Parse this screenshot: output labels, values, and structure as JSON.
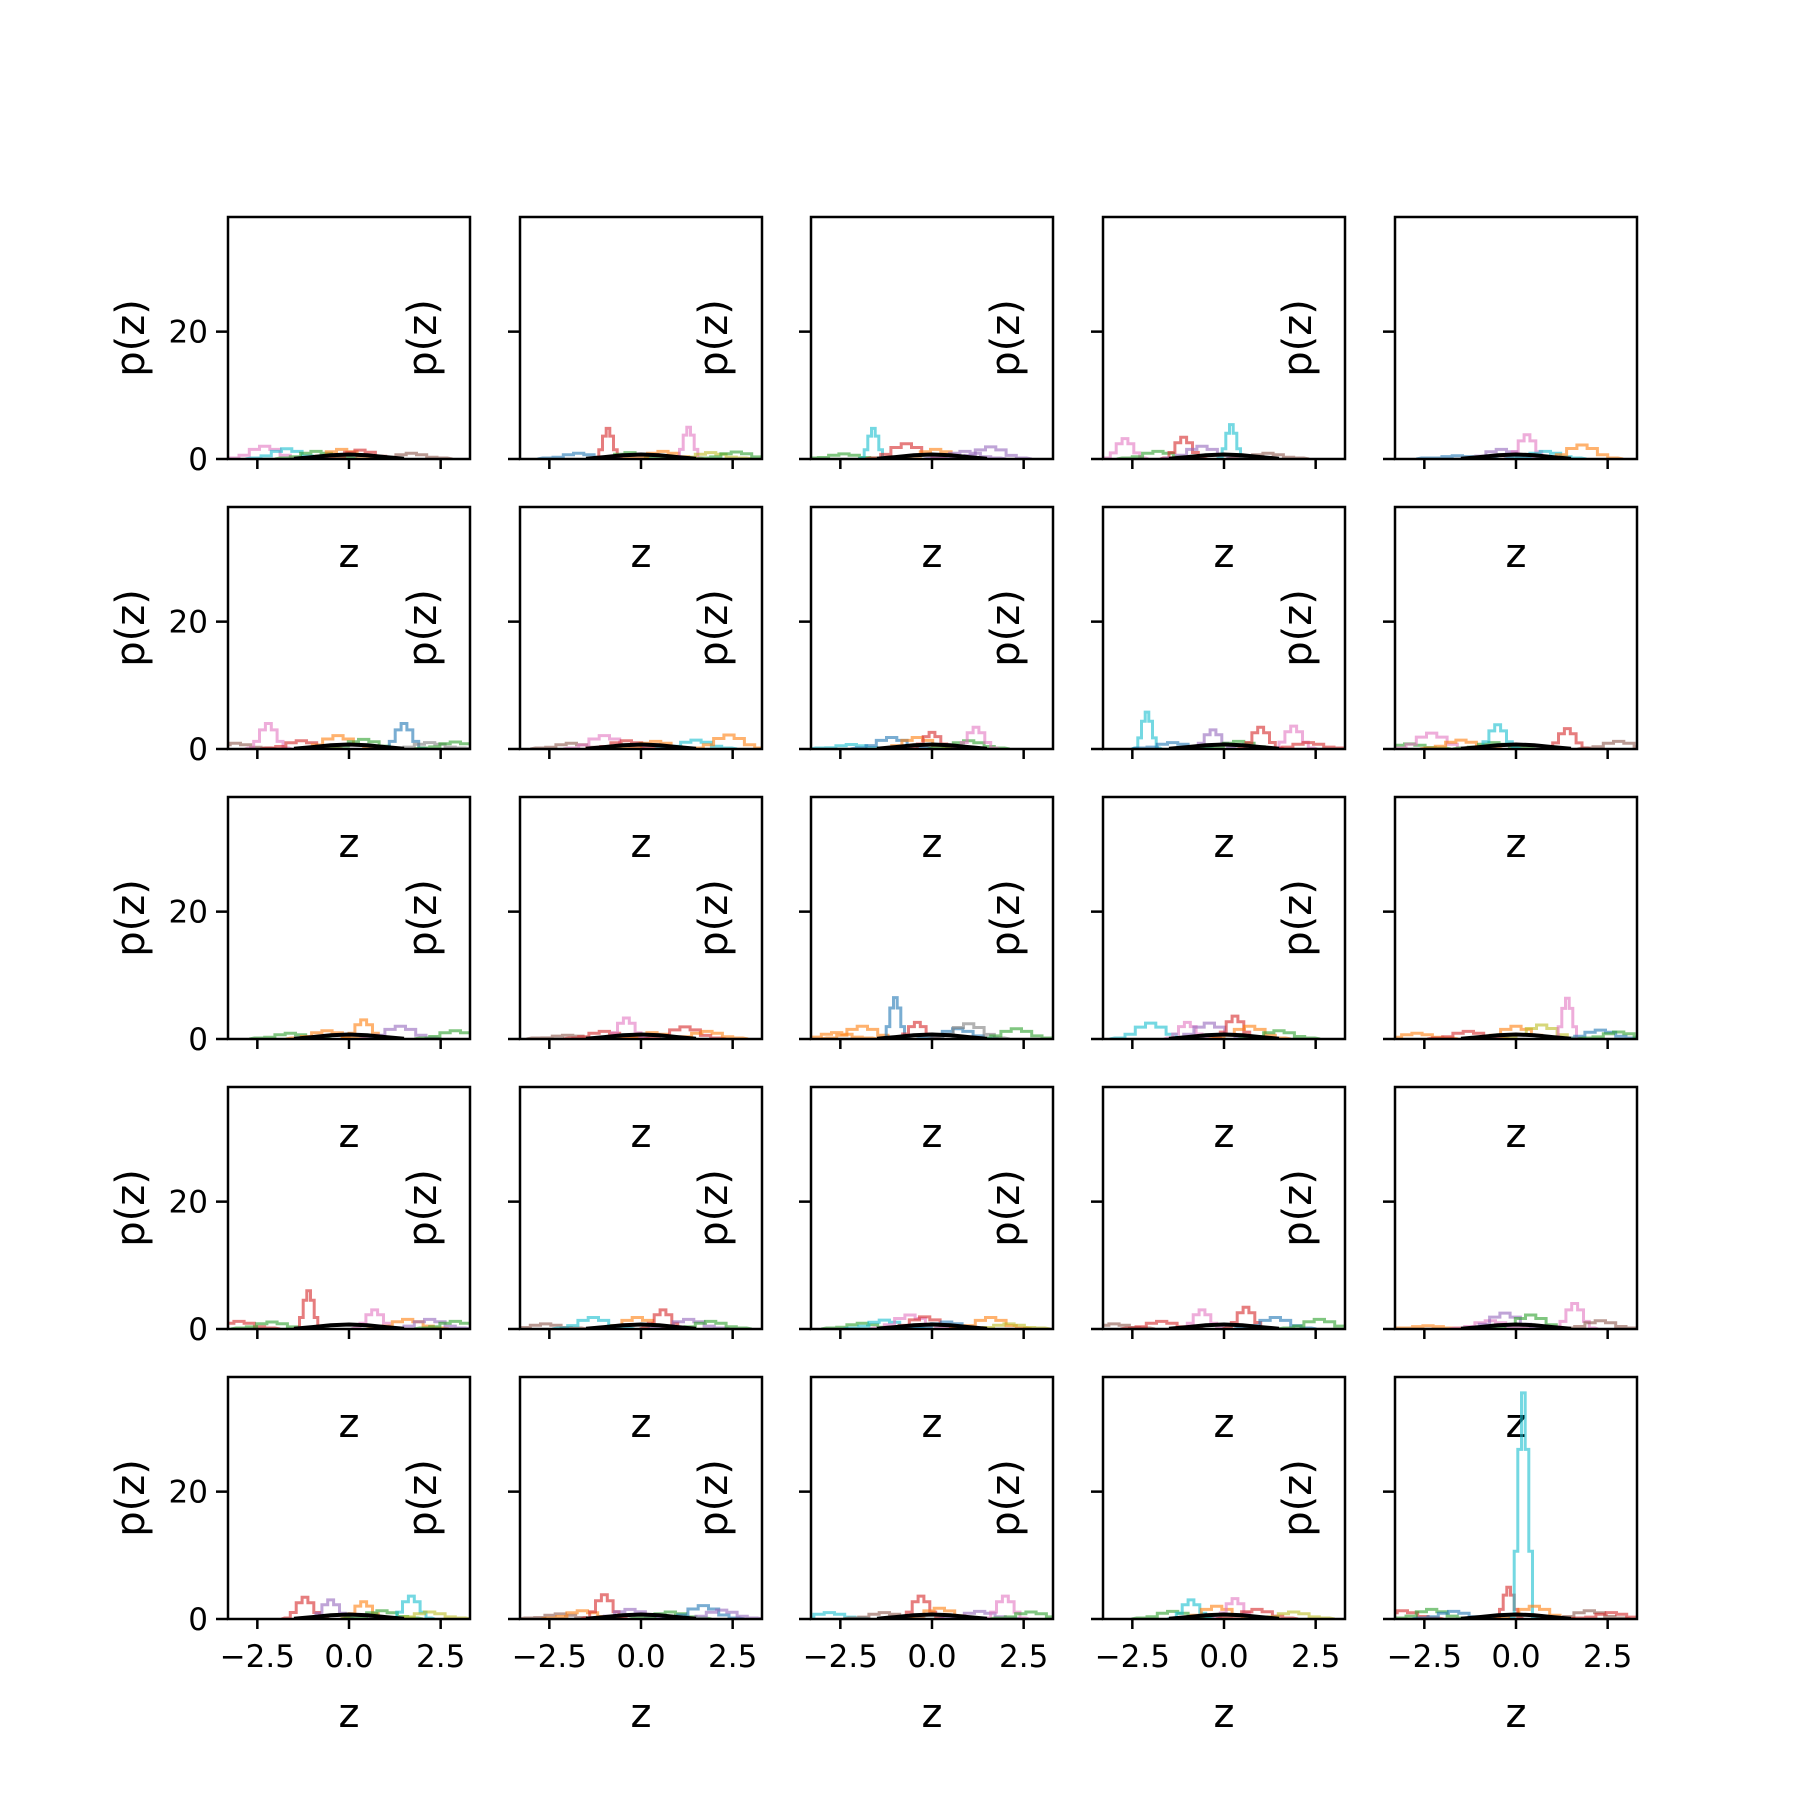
{
  "chart_data": {
    "type": "line",
    "layout": {
      "rows": 5,
      "cols": 5,
      "sharex": true,
      "sharey": true
    },
    "xlabel": "z",
    "ylabel": "p(z)",
    "xlim": [
      -3.3,
      3.3
    ],
    "ylim": [
      0,
      38
    ],
    "xticks": [
      -2.5,
      0.0,
      2.5
    ],
    "xtick_labels": [
      "−2.5",
      "0.0",
      "2.5"
    ],
    "yticks": [
      0,
      20
    ],
    "ytick_labels": [
      "0",
      "20"
    ],
    "grid": false,
    "legend": "none",
    "series_colors": [
      "#1f77b4",
      "#ff7f0e",
      "#2ca02c",
      "#d62728",
      "#9467bd",
      "#8c564b",
      "#e377c2",
      "#7f7f7f",
      "#bcbd22",
      "#17becf"
    ],
    "overall_curve_color": "#000000",
    "overall_curve": {
      "x": [
        -1.5,
        -1.0,
        -0.5,
        0.0,
        0.5,
        1.0,
        1.5
      ],
      "y": [
        0.05,
        0.3,
        0.6,
        0.7,
        0.6,
        0.3,
        0.05
      ]
    },
    "panels": [
      {
        "peaks": [
          {
            "x": -2.3,
            "h": 2.0,
            "c": 6
          },
          {
            "x": -1.7,
            "h": 1.6,
            "c": 9
          },
          {
            "x": -0.9,
            "h": 1.2,
            "c": 2
          },
          {
            "x": -0.2,
            "h": 1.5,
            "c": 1
          },
          {
            "x": 0.3,
            "h": 1.4,
            "c": 3
          },
          {
            "x": 1.7,
            "h": 0.9,
            "c": 5
          }
        ]
      },
      {
        "peaks": [
          {
            "x": -1.7,
            "h": 0.9,
            "c": 0
          },
          {
            "x": -0.9,
            "h": 4.8,
            "c": 3
          },
          {
            "x": -0.3,
            "h": 1.0,
            "c": 2
          },
          {
            "x": 0.6,
            "h": 1.2,
            "c": 1
          },
          {
            "x": 1.3,
            "h": 5.0,
            "c": 6
          },
          {
            "x": 1.9,
            "h": 1.0,
            "c": 8
          },
          {
            "x": 2.6,
            "h": 1.1,
            "c": 2
          }
        ]
      },
      {
        "peaks": [
          {
            "x": -2.4,
            "h": 0.8,
            "c": 2
          },
          {
            "x": -1.6,
            "h": 4.8,
            "c": 9
          },
          {
            "x": -0.7,
            "h": 2.4,
            "c": 3
          },
          {
            "x": 0.1,
            "h": 1.5,
            "c": 1
          },
          {
            "x": 0.9,
            "h": 1.2,
            "c": 4
          },
          {
            "x": 1.6,
            "h": 1.9,
            "c": 4
          }
        ]
      },
      {
        "peaks": [
          {
            "x": -2.7,
            "h": 3.2,
            "c": 6
          },
          {
            "x": -1.8,
            "h": 1.2,
            "c": 2
          },
          {
            "x": -1.1,
            "h": 3.4,
            "c": 3
          },
          {
            "x": -0.6,
            "h": 2.0,
            "c": 4
          },
          {
            "x": 0.2,
            "h": 5.4,
            "c": 9
          },
          {
            "x": 1.2,
            "h": 0.9,
            "c": 5
          }
        ]
      },
      {
        "peaks": [
          {
            "x": -1.6,
            "h": 0.5,
            "c": 0
          },
          {
            "x": -0.4,
            "h": 1.5,
            "c": 4
          },
          {
            "x": 0.3,
            "h": 3.8,
            "c": 6
          },
          {
            "x": 0.8,
            "h": 1.2,
            "c": 9
          },
          {
            "x": 1.8,
            "h": 2.2,
            "c": 1
          }
        ]
      },
      {
        "peaks": [
          {
            "x": -3.1,
            "h": 0.9,
            "c": 5
          },
          {
            "x": -2.2,
            "h": 4.0,
            "c": 6
          },
          {
            "x": -1.3,
            "h": 1.3,
            "c": 3
          },
          {
            "x": -0.3,
            "h": 2.1,
            "c": 1
          },
          {
            "x": 0.4,
            "h": 1.5,
            "c": 2
          },
          {
            "x": 1.5,
            "h": 4.0,
            "c": 0
          },
          {
            "x": 2.2,
            "h": 1.0,
            "c": 7
          },
          {
            "x": 2.9,
            "h": 1.1,
            "c": 2
          }
        ]
      },
      {
        "peaks": [
          {
            "x": -1.9,
            "h": 0.9,
            "c": 5
          },
          {
            "x": -1.0,
            "h": 2.1,
            "c": 6
          },
          {
            "x": -0.4,
            "h": 1.3,
            "c": 3
          },
          {
            "x": 0.4,
            "h": 1.2,
            "c": 1
          },
          {
            "x": 1.5,
            "h": 1.4,
            "c": 9
          },
          {
            "x": 2.4,
            "h": 2.2,
            "c": 1
          }
        ]
      },
      {
        "peaks": [
          {
            "x": -2.2,
            "h": 0.7,
            "c": 9
          },
          {
            "x": -1.1,
            "h": 1.8,
            "c": 0
          },
          {
            "x": -0.4,
            "h": 1.8,
            "c": 1
          },
          {
            "x": 0.0,
            "h": 2.6,
            "c": 3
          },
          {
            "x": 1.0,
            "h": 1.3,
            "c": 2
          },
          {
            "x": 1.2,
            "h": 3.4,
            "c": 6
          }
        ]
      },
      {
        "peaks": [
          {
            "x": -2.1,
            "h": 5.8,
            "c": 9
          },
          {
            "x": -1.4,
            "h": 1.0,
            "c": 0
          },
          {
            "x": -0.3,
            "h": 3.0,
            "c": 4
          },
          {
            "x": 0.4,
            "h": 1.2,
            "c": 2
          },
          {
            "x": 1.0,
            "h": 3.4,
            "c": 3
          },
          {
            "x": 1.9,
            "h": 3.6,
            "c": 6
          },
          {
            "x": 2.3,
            "h": 1.0,
            "c": 3
          }
        ]
      },
      {
        "peaks": [
          {
            "x": -2.9,
            "h": 0.8,
            "c": 2
          },
          {
            "x": -2.3,
            "h": 2.5,
            "c": 6
          },
          {
            "x": -1.5,
            "h": 1.4,
            "c": 1
          },
          {
            "x": -0.6,
            "h": 1.0,
            "c": 2
          },
          {
            "x": -0.5,
            "h": 3.8,
            "c": 9
          },
          {
            "x": 1.4,
            "h": 3.2,
            "c": 3
          },
          {
            "x": 2.8,
            "h": 1.2,
            "c": 5
          }
        ]
      },
      {
        "peaks": [
          {
            "x": -1.6,
            "h": 0.9,
            "c": 2
          },
          {
            "x": -0.6,
            "h": 1.3,
            "c": 1
          },
          {
            "x": 0.4,
            "h": 3.0,
            "c": 1
          },
          {
            "x": 1.4,
            "h": 2.0,
            "c": 4
          },
          {
            "x": 2.9,
            "h": 1.3,
            "c": 2
          }
        ]
      },
      {
        "peaks": [
          {
            "x": -2.0,
            "h": 0.6,
            "c": 5
          },
          {
            "x": -1.0,
            "h": 1.2,
            "c": 3
          },
          {
            "x": -0.4,
            "h": 3.3,
            "c": 6
          },
          {
            "x": 0.3,
            "h": 1.0,
            "c": 1
          },
          {
            "x": 1.2,
            "h": 1.9,
            "c": 3
          },
          {
            "x": 1.8,
            "h": 1.2,
            "c": 1
          }
        ]
      },
      {
        "peaks": [
          {
            "x": -2.6,
            "h": 1.0,
            "c": 1
          },
          {
            "x": -1.9,
            "h": 2.0,
            "c": 1
          },
          {
            "x": -1.0,
            "h": 6.5,
            "c": 0
          },
          {
            "x": -0.4,
            "h": 2.6,
            "c": 3
          },
          {
            "x": 0.7,
            "h": 1.6,
            "c": 0
          },
          {
            "x": 1.0,
            "h": 2.4,
            "c": 7
          },
          {
            "x": 2.3,
            "h": 1.6,
            "c": 2
          }
        ]
      },
      {
        "peaks": [
          {
            "x": -2.0,
            "h": 2.5,
            "c": 9
          },
          {
            "x": -1.0,
            "h": 2.6,
            "c": 6
          },
          {
            "x": -0.4,
            "h": 2.5,
            "c": 4
          },
          {
            "x": 0.3,
            "h": 3.6,
            "c": 3
          },
          {
            "x": 0.7,
            "h": 2.0,
            "c": 1
          },
          {
            "x": 1.5,
            "h": 1.3,
            "c": 2
          }
        ]
      },
      {
        "peaks": [
          {
            "x": -2.7,
            "h": 0.9,
            "c": 1
          },
          {
            "x": -1.3,
            "h": 1.2,
            "c": 3
          },
          {
            "x": 0.0,
            "h": 2.0,
            "c": 1
          },
          {
            "x": 0.7,
            "h": 2.2,
            "c": 8
          },
          {
            "x": 1.4,
            "h": 6.4,
            "c": 6
          },
          {
            "x": 2.3,
            "h": 1.4,
            "c": 0
          },
          {
            "x": 2.8,
            "h": 1.1,
            "c": 2
          }
        ]
      },
      {
        "peaks": [
          {
            "x": -3.0,
            "h": 1.2,
            "c": 3
          },
          {
            "x": -2.1,
            "h": 1.1,
            "c": 2
          },
          {
            "x": -1.1,
            "h": 6.0,
            "c": 3
          },
          {
            "x": 0.7,
            "h": 3.0,
            "c": 6
          },
          {
            "x": 1.6,
            "h": 1.5,
            "c": 1
          },
          {
            "x": 2.2,
            "h": 1.5,
            "c": 4
          },
          {
            "x": 2.9,
            "h": 1.2,
            "c": 2
          }
        ]
      },
      {
        "peaks": [
          {
            "x": -2.6,
            "h": 0.8,
            "c": 5
          },
          {
            "x": -1.3,
            "h": 1.8,
            "c": 9
          },
          {
            "x": -0.1,
            "h": 1.8,
            "c": 1
          },
          {
            "x": 0.6,
            "h": 3.0,
            "c": 3
          },
          {
            "x": 1.3,
            "h": 1.5,
            "c": 4
          },
          {
            "x": 1.9,
            "h": 1.2,
            "c": 2
          }
        ]
      },
      {
        "peaks": [
          {
            "x": -1.9,
            "h": 0.9,
            "c": 2
          },
          {
            "x": -1.3,
            "h": 1.4,
            "c": 9
          },
          {
            "x": -0.6,
            "h": 2.2,
            "c": 6
          },
          {
            "x": -0.2,
            "h": 1.9,
            "c": 3
          },
          {
            "x": 0.4,
            "h": 1.1,
            "c": 0
          },
          {
            "x": 1.6,
            "h": 1.8,
            "c": 1
          },
          {
            "x": 2.1,
            "h": 0.8,
            "c": 8
          }
        ]
      },
      {
        "peaks": [
          {
            "x": -3.0,
            "h": 0.8,
            "c": 5
          },
          {
            "x": -1.7,
            "h": 1.2,
            "c": 3
          },
          {
            "x": -0.6,
            "h": 3.0,
            "c": 6
          },
          {
            "x": 0.6,
            "h": 3.4,
            "c": 3
          },
          {
            "x": 1.4,
            "h": 1.8,
            "c": 0
          },
          {
            "x": 2.6,
            "h": 1.5,
            "c": 2
          }
        ]
      },
      {
        "peaks": [
          {
            "x": -2.4,
            "h": 0.5,
            "c": 1
          },
          {
            "x": -0.7,
            "h": 1.3,
            "c": 6
          },
          {
            "x": -0.3,
            "h": 2.5,
            "c": 4
          },
          {
            "x": 0.4,
            "h": 2.2,
            "c": 2
          },
          {
            "x": 1.6,
            "h": 4.0,
            "c": 6
          },
          {
            "x": 2.3,
            "h": 1.3,
            "c": 5
          }
        ]
      },
      {
        "peaks": [
          {
            "x": -1.2,
            "h": 3.4,
            "c": 3
          },
          {
            "x": -0.5,
            "h": 3.0,
            "c": 4
          },
          {
            "x": 0.4,
            "h": 2.7,
            "c": 1
          },
          {
            "x": 0.9,
            "h": 1.3,
            "c": 2
          },
          {
            "x": 1.7,
            "h": 3.6,
            "c": 9
          },
          {
            "x": 2.2,
            "h": 1.1,
            "c": 8
          }
        ]
      },
      {
        "peaks": [
          {
            "x": -2.2,
            "h": 0.8,
            "c": 5
          },
          {
            "x": -1.6,
            "h": 1.3,
            "c": 1
          },
          {
            "x": -1.0,
            "h": 3.8,
            "c": 3
          },
          {
            "x": -0.3,
            "h": 1.5,
            "c": 4
          },
          {
            "x": 0.8,
            "h": 1.1,
            "c": 2
          },
          {
            "x": 1.7,
            "h": 2.1,
            "c": 0
          },
          {
            "x": 2.2,
            "h": 1.4,
            "c": 4
          }
        ]
      },
      {
        "peaks": [
          {
            "x": -2.8,
            "h": 1.0,
            "c": 9
          },
          {
            "x": -1.3,
            "h": 1.0,
            "c": 5
          },
          {
            "x": -0.3,
            "h": 3.6,
            "c": 3
          },
          {
            "x": 0.2,
            "h": 1.7,
            "c": 1
          },
          {
            "x": 1.3,
            "h": 1.2,
            "c": 4
          },
          {
            "x": 2.0,
            "h": 3.6,
            "c": 6
          },
          {
            "x": 2.7,
            "h": 1.1,
            "c": 2
          }
        ]
      },
      {
        "peaks": [
          {
            "x": -1.4,
            "h": 1.2,
            "c": 2
          },
          {
            "x": -0.9,
            "h": 3.0,
            "c": 9
          },
          {
            "x": -0.2,
            "h": 2.0,
            "c": 1
          },
          {
            "x": 0.3,
            "h": 3.2,
            "c": 6
          },
          {
            "x": 0.9,
            "h": 1.5,
            "c": 3
          },
          {
            "x": 1.9,
            "h": 1.1,
            "c": 8
          }
        ]
      },
      {
        "peaks": [
          {
            "x": -3.1,
            "h": 1.3,
            "c": 3
          },
          {
            "x": -2.3,
            "h": 1.5,
            "c": 2
          },
          {
            "x": -1.7,
            "h": 1.2,
            "c": 0
          },
          {
            "x": -0.2,
            "h": 5.0,
            "c": 3
          },
          {
            "x": 0.2,
            "h": 35.5,
            "c": 9
          },
          {
            "x": 0.5,
            "h": 2.0,
            "c": 1
          },
          {
            "x": 2.0,
            "h": 1.3,
            "c": 5
          },
          {
            "x": 2.6,
            "h": 1.0,
            "c": 3
          }
        ]
      }
    ]
  }
}
